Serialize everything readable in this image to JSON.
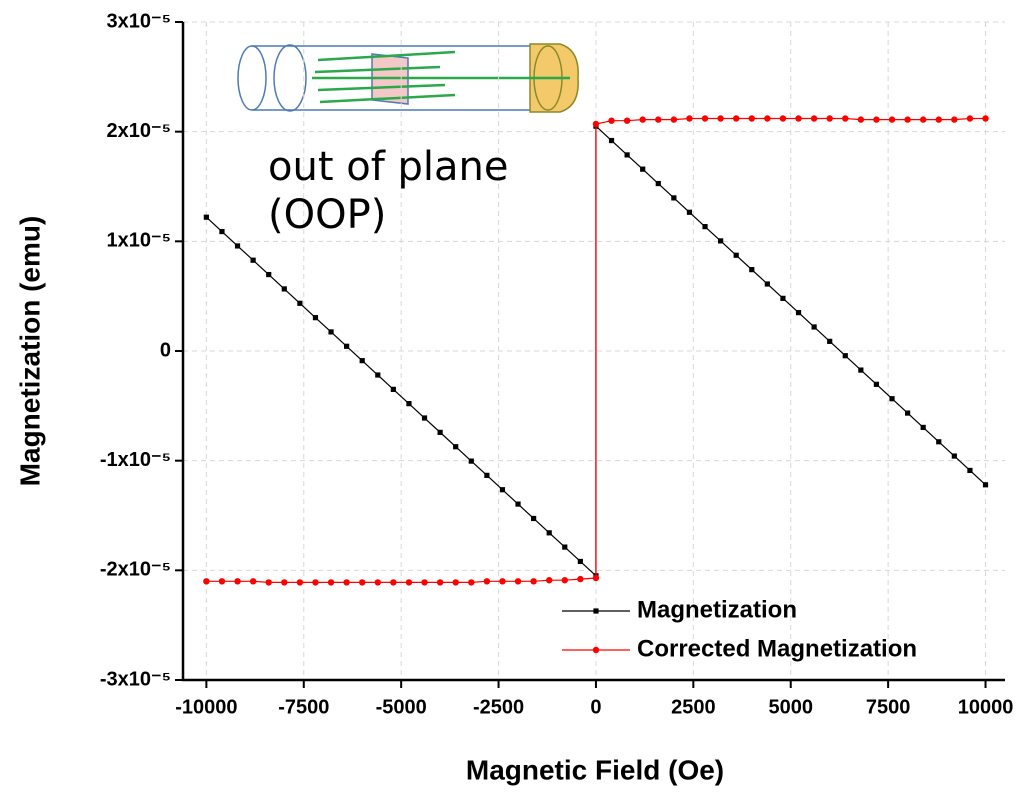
{
  "chart_data": {
    "type": "line",
    "annotation": "out of plane (OOP)",
    "x_label": "Magnetic Field (Oe)",
    "y_label": "Magnetization (emu)",
    "x": [
      -10000,
      -9600,
      -9200,
      -8800,
      -8400,
      -8000,
      -7600,
      -7200,
      -6800,
      -6400,
      -6000,
      -5600,
      -5200,
      -4800,
      -4400,
      -4000,
      -3600,
      -3200,
      -2800,
      -2400,
      -2000,
      -1600,
      -1200,
      -800,
      -400,
      0,
      0,
      400,
      800,
      1200,
      1600,
      2000,
      2400,
      2800,
      3200,
      3600,
      4000,
      4400,
      4800,
      5200,
      5600,
      6000,
      6400,
      6800,
      7200,
      7600,
      8000,
      8400,
      8800,
      9200,
      9600,
      10000
    ],
    "series": [
      {
        "name": "Magnetization",
        "color": "#000000",
        "marker": "square",
        "values": [
          1.22e-05,
          1.089e-05,
          9.58e-06,
          8.28e-06,
          6.97e-06,
          5.66e-06,
          4.35e-06,
          3.04e-06,
          1.74e-06,
          4.3e-07,
          -8.8e-07,
          -2.19e-06,
          -3.5e-06,
          -4.8e-06,
          -6.11e-06,
          -7.42e-06,
          -8.73e-06,
          -1.004e-05,
          -1.134e-05,
          -1.265e-05,
          -1.396e-05,
          -1.527e-05,
          -1.658e-05,
          -1.788e-05,
          -1.919e-05,
          -2.05e-05,
          2.05e-05,
          1.919e-05,
          1.788e-05,
          1.658e-05,
          1.527e-05,
          1.396e-05,
          1.265e-05,
          1.134e-05,
          1.004e-05,
          8.73e-06,
          7.42e-06,
          6.11e-06,
          4.8e-06,
          3.5e-06,
          2.19e-06,
          8.8e-07,
          -4.3e-07,
          -1.74e-06,
          -3.04e-06,
          -4.35e-06,
          -5.66e-06,
          -6.97e-06,
          -8.28e-06,
          -9.58e-06,
          -1.089e-05,
          -1.22e-05
        ]
      },
      {
        "name": "Corrected Magnetization",
        "color": "#ff0000",
        "marker": "circle",
        "values": [
          -2.1e-05,
          -2.1e-05,
          -2.1e-05,
          -2.1e-05,
          -2.11e-05,
          -2.11e-05,
          -2.11e-05,
          -2.11e-05,
          -2.11e-05,
          -2.11e-05,
          -2.11e-05,
          -2.11e-05,
          -2.11e-05,
          -2.11e-05,
          -2.11e-05,
          -2.11e-05,
          -2.11e-05,
          -2.11e-05,
          -2.1e-05,
          -2.1e-05,
          -2.1e-05,
          -2.1e-05,
          -2.09e-05,
          -2.09e-05,
          -2.08e-05,
          -2.07e-05,
          2.07e-05,
          2.1e-05,
          2.1e-05,
          2.11e-05,
          2.11e-05,
          2.11e-05,
          2.12e-05,
          2.12e-05,
          2.12e-05,
          2.12e-05,
          2.12e-05,
          2.12e-05,
          2.12e-05,
          2.12e-05,
          2.12e-05,
          2.12e-05,
          2.12e-05,
          2.11e-05,
          2.11e-05,
          2.11e-05,
          2.11e-05,
          2.11e-05,
          2.11e-05,
          2.11e-05,
          2.12e-05,
          2.12e-05
        ]
      }
    ],
    "xlim": [
      -10600,
      10500
    ],
    "xticks": [
      -10000,
      -7500,
      -5000,
      -2500,
      0,
      2500,
      5000,
      7500,
      10000
    ],
    "ylim": [
      -3e-05,
      3e-05
    ],
    "yticks": [
      {
        "value": 3e-05,
        "label": "3x10⁻⁵"
      },
      {
        "value": 2e-05,
        "label": "2x10⁻⁵"
      },
      {
        "value": 1e-05,
        "label": "1x10⁻⁵"
      },
      0,
      {
        "value": -1e-05,
        "label": "-1x10⁻⁵"
      },
      {
        "value": -2e-05,
        "label": "-2x10⁻⁵"
      },
      {
        "value": -3e-05,
        "label": "-3x10⁻⁵"
      }
    ],
    "grid": true,
    "legend": "lower right"
  }
}
